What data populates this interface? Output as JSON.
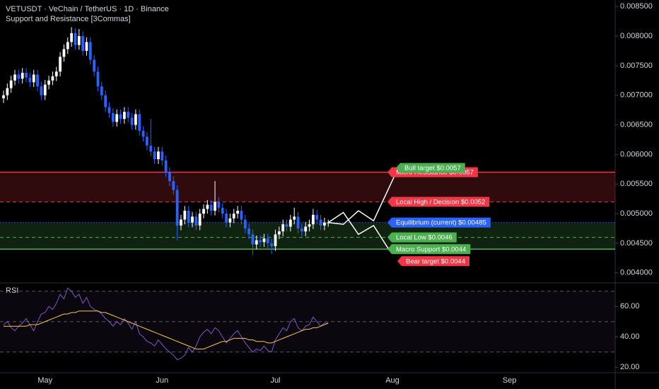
{
  "chart_data": {
    "type": "candlestick",
    "title": "VETUSDT · VeChain / TetherUS · 1D · Binance",
    "subtitle": "Support and Resistance [3Commas]",
    "categories": [
      null,
      null,
      null,
      null,
      null,
      null,
      null,
      null,
      null,
      null,
      null,
      "May",
      null,
      null,
      null,
      null,
      null,
      null,
      null,
      null,
      null,
      null,
      null,
      null,
      null,
      null,
      null,
      null,
      null,
      null,
      null,
      null,
      null,
      null,
      null,
      null,
      null,
      null,
      null,
      null,
      null,
      null,
      "Jun",
      null,
      null,
      null,
      null,
      null,
      null,
      null,
      null,
      null,
      null,
      null,
      null,
      null,
      null,
      null,
      null,
      null,
      null,
      null,
      null,
      null,
      null,
      null,
      null,
      null,
      null,
      null,
      null,
      null,
      "Jul",
      null,
      null,
      null,
      null,
      null,
      null,
      null,
      null,
      null,
      null,
      null,
      null,
      null,
      null,
      null,
      null,
      null,
      null,
      null,
      null,
      null,
      null,
      null,
      null,
      null,
      null,
      null,
      null,
      null,
      null,
      "Aug",
      null,
      null,
      null,
      null,
      null,
      null,
      null,
      null,
      null,
      null,
      null,
      null,
      null,
      null,
      null,
      null,
      null,
      null,
      null,
      null,
      null,
      null,
      null,
      null,
      null,
      null,
      null,
      null,
      null,
      null,
      "Sep"
    ],
    "open": [
      0.00695,
      0.007,
      0.00712,
      0.00725,
      0.00735,
      0.00728,
      0.00738,
      0.0073,
      0.00722,
      0.00735,
      0.00715,
      0.007,
      0.00718,
      0.00725,
      0.00732,
      0.0074,
      0.00765,
      0.00778,
      0.0079,
      0.00805,
      0.00785,
      0.008,
      0.00775,
      0.0079,
      0.0076,
      0.0074,
      0.00715,
      0.007,
      0.0068,
      0.0067,
      0.00655,
      0.00668,
      0.0066,
      0.00672,
      0.00662,
      0.0065,
      0.00668,
      0.0064,
      0.0063,
      0.00615,
      0.00605,
      0.00592,
      0.00605,
      0.0059,
      0.0057,
      0.00555,
      0.0054,
      0.0048,
      0.0049,
      0.00505,
      0.00485,
      0.00495,
      0.0048,
      0.005,
      0.00508,
      0.00515,
      0.00505,
      0.0052,
      0.0051,
      0.005,
      0.00485,
      0.00492,
      0.005,
      0.00505,
      0.0049,
      0.00475,
      0.00465,
      0.00448,
      0.00455,
      0.00452,
      0.00458,
      0.0045,
      0.00445,
      0.00465,
      0.0047,
      0.00482,
      0.00478,
      0.0049,
      0.00495,
      0.00475,
      0.0047,
      0.00478,
      0.00482,
      0.00498,
      0.0049,
      0.0048,
      0.00485,
      null,
      null,
      null,
      null,
      null,
      null,
      null,
      null,
      null,
      null,
      null,
      null,
      null,
      null,
      null,
      null,
      null,
      null,
      null,
      null,
      null,
      null,
      null,
      null,
      null,
      null,
      null,
      null,
      null,
      null,
      null,
      null,
      null,
      null,
      null,
      null,
      null,
      null,
      null,
      null,
      null,
      null,
      null,
      null,
      null,
      null,
      null,
      null
    ],
    "high": [
      0.00708,
      0.0072,
      0.00733,
      0.00743,
      0.00743,
      0.00746,
      0.00746,
      0.00738,
      0.00743,
      0.00743,
      0.00723,
      0.00726,
      0.00733,
      0.0074,
      0.00748,
      0.00773,
      0.00786,
      0.00798,
      0.00815,
      0.00813,
      0.00812,
      0.00808,
      0.00798,
      0.00798,
      0.00768,
      0.00748,
      0.00723,
      0.00708,
      0.00688,
      0.00678,
      0.00676,
      0.00676,
      0.0068,
      0.0068,
      0.0067,
      0.00676,
      0.00676,
      0.00648,
      0.00638,
      0.0066,
      0.00613,
      0.00613,
      0.00613,
      0.00598,
      0.00578,
      0.00563,
      0.00548,
      0.00498,
      0.00513,
      0.00513,
      0.00503,
      0.00503,
      0.00508,
      0.00516,
      0.00523,
      0.00523,
      0.00555,
      0.00528,
      0.00518,
      0.00508,
      0.005,
      0.00508,
      0.00513,
      0.00513,
      0.00498,
      0.00483,
      0.00473,
      0.00463,
      0.00463,
      0.00466,
      0.00466,
      0.00458,
      0.00473,
      0.00478,
      0.0049,
      0.0049,
      0.00498,
      0.0051,
      0.00503,
      0.00483,
      0.00486,
      0.0049,
      0.00508,
      0.00506,
      0.00498,
      0.00493,
      0.0049,
      null,
      null,
      null,
      null,
      null,
      null,
      null,
      null,
      null,
      null,
      null,
      null,
      null,
      null,
      null,
      null,
      null,
      null,
      null,
      null,
      null,
      null,
      null,
      null,
      null,
      null,
      null,
      null,
      null,
      null,
      null,
      null,
      null,
      null,
      null,
      null,
      null,
      null,
      null,
      null,
      null,
      null,
      null,
      null,
      null,
      null,
      null,
      null
    ],
    "low": [
      0.00687,
      0.00692,
      0.00704,
      0.00717,
      0.0072,
      0.0072,
      0.00722,
      0.00714,
      0.00714,
      0.00707,
      0.00692,
      0.00692,
      0.0071,
      0.00717,
      0.00724,
      0.00732,
      0.00757,
      0.0077,
      0.00782,
      0.00777,
      0.00777,
      0.00767,
      0.00767,
      0.00752,
      0.00732,
      0.00707,
      0.00692,
      0.00672,
      0.00662,
      0.00647,
      0.00647,
      0.00652,
      0.00652,
      0.00654,
      0.00642,
      0.00642,
      0.00632,
      0.00622,
      0.00607,
      0.00597,
      0.00584,
      0.00584,
      0.00582,
      0.00562,
      0.00547,
      0.00532,
      0.00455,
      0.00472,
      0.00482,
      0.00477,
      0.00477,
      0.00472,
      0.00472,
      0.00492,
      0.005,
      0.00497,
      0.00497,
      0.00502,
      0.00492,
      0.00477,
      0.00477,
      0.00484,
      0.00492,
      0.00482,
      0.00467,
      0.00457,
      0.0043,
      0.0044,
      0.00444,
      0.00444,
      0.00442,
      0.00432,
      0.00437,
      0.00457,
      0.00462,
      0.0047,
      0.0047,
      0.00482,
      0.00467,
      0.00462,
      0.00462,
      0.0047,
      0.00474,
      0.00482,
      0.00472,
      0.00472,
      0.00478,
      null,
      null,
      null,
      null,
      null,
      null,
      null,
      null,
      null,
      null,
      null,
      null,
      null,
      null,
      null,
      null,
      null,
      null,
      null,
      null,
      null,
      null,
      null,
      null,
      null,
      null,
      null,
      null,
      null,
      null,
      null,
      null,
      null,
      null,
      null,
      null,
      null,
      null,
      null,
      null,
      null,
      null,
      null,
      null,
      null,
      null,
      null,
      null
    ],
    "close": [
      0.007,
      0.00712,
      0.00725,
      0.00735,
      0.00728,
      0.00738,
      0.0073,
      0.00722,
      0.00735,
      0.00715,
      0.007,
      0.00718,
      0.00725,
      0.00732,
      0.0074,
      0.00765,
      0.00778,
      0.0079,
      0.00805,
      0.00785,
      0.008,
      0.00775,
      0.0079,
      0.0076,
      0.0074,
      0.00715,
      0.007,
      0.0068,
      0.0067,
      0.00655,
      0.00668,
      0.0066,
      0.00672,
      0.00662,
      0.0065,
      0.00668,
      0.0064,
      0.0063,
      0.00615,
      0.00605,
      0.00592,
      0.00605,
      0.0059,
      0.0057,
      0.00555,
      0.0054,
      0.0048,
      0.0049,
      0.00505,
      0.00485,
      0.00495,
      0.0048,
      0.005,
      0.00508,
      0.00515,
      0.00505,
      0.0052,
      0.0051,
      0.005,
      0.00485,
      0.00492,
      0.005,
      0.00505,
      0.0049,
      0.00475,
      0.00465,
      0.00448,
      0.00455,
      0.00452,
      0.00458,
      0.0045,
      0.00445,
      0.00465,
      0.0047,
      0.00482,
      0.00478,
      0.0049,
      0.00495,
      0.00475,
      0.0047,
      0.00478,
      0.00482,
      0.00498,
      0.0049,
      0.0048,
      0.00485,
      0.00485,
      null,
      null,
      null,
      null,
      null,
      null,
      null,
      null,
      null,
      null,
      null,
      null,
      null,
      null,
      null,
      null,
      null,
      null,
      null,
      null,
      null,
      null,
      null,
      null,
      null,
      null,
      null,
      null,
      null,
      null,
      null,
      null,
      null,
      null,
      null,
      null,
      null,
      null,
      null,
      null,
      null,
      null,
      null,
      null,
      null,
      null,
      null,
      null
    ],
    "up_color": "#ffffff",
    "down_color": "#2962ff",
    "ylim": [
      0.00383,
      0.00861
    ],
    "yticks": [
      {
        "value": 0.004,
        "label": "0.004000"
      },
      {
        "value": 0.0045,
        "label": "0.004500"
      },
      {
        "value": 0.005,
        "label": "0.005000"
      },
      {
        "value": 0.0055,
        "label": "0.005500"
      },
      {
        "value": 0.006,
        "label": "0.006000"
      },
      {
        "value": 0.0065,
        "label": "0.006500"
      },
      {
        "value": 0.007,
        "label": "0.007000"
      },
      {
        "value": 0.0075,
        "label": "0.007500"
      },
      {
        "value": 0.008,
        "label": "0.008000"
      },
      {
        "value": 0.0085,
        "label": "0.008500"
      }
    ],
    "levels": [
      {
        "label": "Micro Resistance $0.0057",
        "value": 0.0057,
        "color": "#f23645",
        "style": "solid"
      },
      {
        "label": "Local High / Decision $0.0052",
        "value": 0.0052,
        "color": "#f23645",
        "style": "dashed"
      },
      {
        "label": "Equilibrium (current) $0.00485",
        "value": 0.00485,
        "color": "#2962ff",
        "style": "dotted"
      },
      {
        "label": "Local Low $0.0046",
        "value": 0.0046,
        "color": "#4caf50",
        "style": "dashed"
      },
      {
        "label": "Macro Support $0.0044",
        "value": 0.0044,
        "color": "#4caf50",
        "style": "solid"
      }
    ],
    "targets": [
      {
        "label": "Bull target $0.0057",
        "value": 0.0057,
        "color": "#4caf50"
      },
      {
        "label": "Bear target $0.0044",
        "value": 0.0044,
        "color": "#f23645"
      }
    ],
    "projections": [
      {
        "x": [
          86,
          90,
          94,
          98,
          104
        ],
        "values": [
          0.00485,
          0.00482,
          0.00505,
          0.00488,
          0.0057
        ],
        "color": "#ffffff"
      },
      {
        "x": [
          86,
          90,
          94,
          98,
          102
        ],
        "values": [
          0.00485,
          0.00502,
          0.00465,
          0.0048,
          0.0044
        ],
        "color": "#ffffff"
      }
    ],
    "rsi": {
      "title": "RSI",
      "ylim": [
        15,
        75
      ],
      "yticks": [
        {
          "value": 20,
          "label": "20.00"
        },
        {
          "value": 40,
          "label": "40.00"
        },
        {
          "value": 60,
          "label": "60.00"
        }
      ],
      "levels": [
        70,
        50,
        30
      ],
      "series": [
        {
          "color": "#7e57c2",
          "values": [
            48,
            50,
            46,
            44,
            47,
            49,
            52,
            48,
            44,
            50,
            55,
            56,
            60,
            58,
            62,
            68,
            65,
            72,
            70,
            66,
            68,
            62,
            66,
            60,
            58,
            57,
            55,
            52,
            50,
            47,
            50,
            48,
            52,
            49,
            45,
            50,
            42,
            40,
            37,
            36,
            34,
            38,
            35,
            32,
            30,
            28,
            25,
            26,
            28,
            33,
            30,
            34,
            40,
            43,
            45,
            42,
            46,
            44,
            40,
            36,
            39,
            42,
            44,
            40,
            36,
            33,
            30,
            32,
            31,
            34,
            31,
            30,
            38,
            42,
            46,
            44,
            50,
            52,
            46,
            44,
            47,
            48,
            53,
            50,
            47,
            49,
            49,
            null,
            null,
            null,
            null,
            null,
            null,
            null,
            null,
            null,
            null,
            null,
            null,
            null,
            null,
            null,
            null,
            null,
            null,
            null,
            null,
            null,
            null,
            null,
            null,
            null,
            null,
            null,
            null,
            null,
            null,
            null,
            null,
            null,
            null,
            null,
            null,
            null,
            null,
            null,
            null,
            null,
            null,
            null,
            null,
            null,
            null,
            null,
            null
          ]
        },
        {
          "color": "#f7c548",
          "values": [
            47,
            47,
            47,
            47,
            47,
            47,
            47,
            48,
            48,
            48,
            49,
            50,
            51,
            52,
            53,
            54,
            55,
            55,
            56,
            56,
            57,
            57,
            57,
            57,
            57,
            57,
            56,
            56,
            55,
            54,
            53,
            52,
            51,
            50,
            49,
            48,
            47,
            46,
            45,
            44,
            43,
            42,
            41,
            40,
            39,
            38,
            37,
            36,
            35,
            34,
            33,
            32,
            32,
            32,
            33,
            34,
            35,
            36,
            37,
            37,
            38,
            39,
            39,
            39,
            39,
            38,
            38,
            37,
            37,
            37,
            36,
            36,
            37,
            38,
            39,
            40,
            41,
            42,
            43,
            44,
            45,
            45,
            46,
            46,
            47,
            48,
            49,
            null,
            null,
            null,
            null,
            null,
            null,
            null,
            null,
            null,
            null,
            null,
            null,
            null,
            null,
            null,
            null,
            null,
            null,
            null,
            null,
            null,
            null,
            null,
            null,
            null,
            null,
            null,
            null,
            null,
            null,
            null,
            null,
            null,
            null,
            null,
            null,
            null,
            null,
            null,
            null,
            null,
            null,
            null,
            null,
            null,
            null,
            null,
            null
          ]
        }
      ]
    }
  }
}
